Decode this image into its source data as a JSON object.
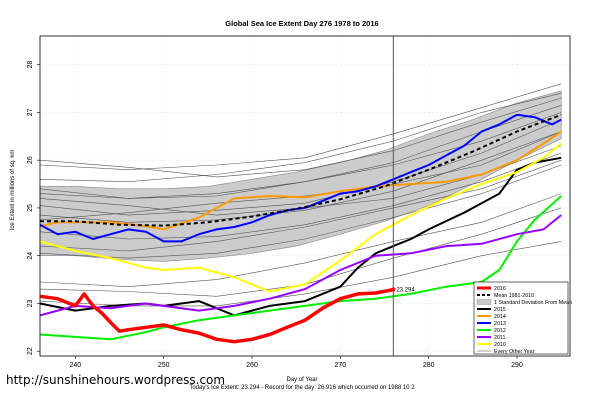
{
  "chart_data": {
    "type": "line",
    "title": "Global Sea Ice Extent Day 276 1978 to 2016",
    "xlabel": "Day of Year",
    "ylabel": "Ice Extent in millions of sq. km",
    "xlim": [
      236,
      296
    ],
    "ylim": [
      21.9,
      28.6
    ],
    "x_ticks": [
      240,
      250,
      260,
      270,
      280,
      290
    ],
    "y_ticks": [
      22,
      23,
      24,
      25,
      26,
      27,
      28
    ],
    "grid": true,
    "current_day": 276,
    "current_value": 23.294,
    "current_value_label": "23.294",
    "footer": "Today's Ice Extent: 23.294  -  Record for the day: 26.916 which occurred on 1988 10 2",
    "watermark": "http://sunshinehours.wordpress.com",
    "legend_position": "bottom-right",
    "legend": [
      {
        "label": "2016",
        "color": "#ff0000",
        "style": "thick"
      },
      {
        "label": "Mean 1981-2010",
        "color": "#000000",
        "style": "dashed"
      },
      {
        "label": "1 Standard Deviation From Mean",
        "color": "#c8c8c8",
        "style": "band"
      },
      {
        "label": "2015",
        "color": "#000000",
        "style": "solid"
      },
      {
        "label": "2014",
        "color": "#ff9900",
        "style": "solid"
      },
      {
        "label": "2013",
        "color": "#0000ff",
        "style": "solid"
      },
      {
        "label": "2012",
        "color": "#00ee00",
        "style": "solid"
      },
      {
        "label": "2011",
        "color": "#9900ff",
        "style": "solid"
      },
      {
        "label": "2010",
        "color": "#ffff00",
        "style": "solid"
      },
      {
        "label": "Every Other Year",
        "color": "#888888",
        "style": "thin"
      }
    ],
    "mean": {
      "x": [
        236,
        240,
        245,
        250,
        255,
        260,
        265,
        270,
        275,
        280,
        285,
        290,
        295
      ],
      "y": [
        24.72,
        24.72,
        24.65,
        24.63,
        24.7,
        24.82,
        24.98,
        25.18,
        25.45,
        25.8,
        26.18,
        26.6,
        26.95
      ]
    },
    "std_band": {
      "x": [
        236,
        240,
        245,
        250,
        255,
        260,
        265,
        270,
        275,
        280,
        285,
        290,
        295
      ],
      "upper": [
        25.45,
        25.45,
        25.4,
        25.4,
        25.45,
        25.6,
        25.75,
        25.95,
        26.2,
        26.55,
        26.85,
        27.2,
        27.45
      ],
      "lower": [
        24.0,
        24.0,
        23.92,
        23.88,
        23.95,
        24.05,
        24.2,
        24.45,
        24.72,
        25.05,
        25.5,
        26.0,
        26.45
      ]
    },
    "series": [
      {
        "name": "2016",
        "color": "#ff0000",
        "width": 3.5,
        "x": [
          236,
          238,
          240,
          241,
          242,
          243,
          244,
          245,
          246,
          248,
          250,
          252,
          254,
          256,
          258,
          260,
          262,
          264,
          266,
          268,
          270,
          272,
          274,
          276
        ],
        "y": [
          23.15,
          23.1,
          22.95,
          23.2,
          22.95,
          22.8,
          22.6,
          22.42,
          22.45,
          22.5,
          22.55,
          22.45,
          22.38,
          22.25,
          22.2,
          22.25,
          22.35,
          22.5,
          22.65,
          22.9,
          23.1,
          23.2,
          23.22,
          23.29
        ]
      },
      {
        "name": "2015",
        "color": "#000000",
        "width": 2,
        "x": [
          236,
          240,
          244,
          248,
          250,
          254,
          258,
          260,
          262,
          266,
          270,
          272,
          274,
          276,
          278,
          280,
          284,
          288,
          290,
          292,
          295
        ],
        "y": [
          23.0,
          22.85,
          22.95,
          23.0,
          22.95,
          23.05,
          22.75,
          22.85,
          22.95,
          23.05,
          23.35,
          23.75,
          24.05,
          24.2,
          24.35,
          24.55,
          24.9,
          25.3,
          25.8,
          25.95,
          26.05
        ]
      },
      {
        "name": "2014",
        "color": "#ff9900",
        "width": 2,
        "x": [
          236,
          238,
          240,
          244,
          248,
          250,
          254,
          258,
          262,
          266,
          270,
          274,
          278,
          282,
          286,
          290,
          293,
          295
        ],
        "y": [
          24.62,
          24.7,
          24.7,
          24.7,
          24.62,
          24.55,
          24.8,
          25.2,
          25.25,
          25.22,
          25.35,
          25.45,
          25.5,
          25.55,
          25.7,
          26.0,
          26.35,
          26.6
        ]
      },
      {
        "name": "2013",
        "color": "#0000ff",
        "width": 2,
        "x": [
          236,
          238,
          240,
          242,
          244,
          246,
          248,
          250,
          252,
          254,
          256,
          258,
          260,
          262,
          264,
          266,
          268,
          270,
          272,
          274,
          276,
          278,
          280,
          282,
          284,
          286,
          288,
          290,
          292,
          294,
          295
        ],
        "y": [
          24.65,
          24.45,
          24.5,
          24.35,
          24.45,
          24.55,
          24.5,
          24.3,
          24.3,
          24.45,
          24.55,
          24.6,
          24.7,
          24.85,
          24.95,
          25.0,
          25.15,
          25.3,
          25.35,
          25.45,
          25.6,
          25.75,
          25.9,
          26.1,
          26.3,
          26.6,
          26.75,
          26.95,
          26.9,
          26.75,
          26.85
        ]
      },
      {
        "name": "2012",
        "color": "#00ee00",
        "width": 2,
        "x": [
          236,
          240,
          244,
          248,
          250,
          254,
          258,
          262,
          266,
          270,
          274,
          278,
          282,
          286,
          288,
          290,
          292,
          295
        ],
        "y": [
          22.35,
          22.3,
          22.25,
          22.4,
          22.5,
          22.65,
          22.75,
          22.85,
          22.95,
          23.05,
          23.1,
          23.2,
          23.35,
          23.45,
          23.7,
          24.3,
          24.75,
          25.25
        ]
      },
      {
        "name": "2011",
        "color": "#9900ff",
        "width": 2,
        "x": [
          236,
          240,
          244,
          248,
          250,
          254,
          258,
          262,
          266,
          270,
          274,
          278,
          282,
          286,
          290,
          293,
          295
        ],
        "y": [
          22.75,
          22.95,
          22.9,
          23.0,
          22.95,
          22.85,
          22.95,
          23.1,
          23.3,
          23.7,
          24.0,
          24.05,
          24.2,
          24.25,
          24.45,
          24.55,
          24.85
        ]
      },
      {
        "name": "2010",
        "color": "#ffff00",
        "width": 2,
        "x": [
          236,
          240,
          244,
          248,
          250,
          254,
          258,
          262,
          266,
          270,
          274,
          278,
          282,
          286,
          290,
          293,
          295
        ],
        "y": [
          24.3,
          24.1,
          23.95,
          23.75,
          23.7,
          23.75,
          23.55,
          23.25,
          23.4,
          23.9,
          24.45,
          24.85,
          25.2,
          25.5,
          25.75,
          26.05,
          26.35
        ]
      }
    ],
    "other_years": [
      {
        "name": "other",
        "x": [
          236,
          246,
          256,
          266,
          276,
          286,
          295
        ],
        "y": [
          25.3,
          25.2,
          25.3,
          25.55,
          25.9,
          26.4,
          27.0
        ]
      },
      {
        "name": "other",
        "x": [
          236,
          246,
          256,
          266,
          276,
          286,
          295
        ],
        "y": [
          25.6,
          25.55,
          25.7,
          25.95,
          26.4,
          27.0,
          27.4
        ]
      },
      {
        "name": "other",
        "x": [
          236,
          246,
          256,
          266,
          276,
          286,
          295
        ],
        "y": [
          25.9,
          25.8,
          25.9,
          26.05,
          26.55,
          27.1,
          27.6
        ]
      },
      {
        "name": "other",
        "x": [
          236,
          246,
          256,
          266,
          276,
          286,
          295
        ],
        "y": [
          25.05,
          24.85,
          24.95,
          25.1,
          25.55,
          26.15,
          26.85
        ]
      },
      {
        "name": "other",
        "x": [
          236,
          246,
          256,
          266,
          276,
          286,
          295
        ],
        "y": [
          24.85,
          24.7,
          24.75,
          24.95,
          25.35,
          26.0,
          26.6
        ]
      },
      {
        "name": "other",
        "x": [
          236,
          246,
          256,
          266,
          276,
          286,
          295
        ],
        "y": [
          24.5,
          24.35,
          24.4,
          24.65,
          25.05,
          25.55,
          26.15
        ]
      },
      {
        "name": "other",
        "x": [
          236,
          246,
          256,
          266,
          276,
          286,
          295
        ],
        "y": [
          24.2,
          24.1,
          24.3,
          24.6,
          25.0,
          25.4,
          26.0
        ]
      },
      {
        "name": "other",
        "x": [
          236,
          246,
          256,
          266,
          276,
          286,
          295
        ],
        "y": [
          24.05,
          23.95,
          24.05,
          24.35,
          24.8,
          25.3,
          25.9
        ]
      },
      {
        "name": "other",
        "x": [
          236,
          246,
          256,
          266,
          276,
          286,
          295
        ],
        "y": [
          23.45,
          23.35,
          23.5,
          23.85,
          24.3,
          24.7,
          25.3
        ]
      },
      {
        "name": "other",
        "x": [
          236,
          246,
          256,
          266,
          276,
          286,
          295
        ],
        "y": [
          23.3,
          23.25,
          23.15,
          23.4,
          23.95,
          24.45,
          25.0
        ]
      },
      {
        "name": "other",
        "x": [
          236,
          246,
          256,
          266,
          276,
          286,
          295
        ],
        "y": [
          25.2,
          25.05,
          24.85,
          25.0,
          25.2,
          25.7,
          26.3
        ]
      },
      {
        "name": "other",
        "x": [
          236,
          246,
          256,
          266,
          276,
          286,
          295
        ],
        "y": [
          26.0,
          25.85,
          25.65,
          25.8,
          26.2,
          26.8,
          27.3
        ]
      },
      {
        "name": "other",
        "x": [
          236,
          246,
          256,
          266,
          276,
          286,
          295
        ],
        "y": [
          24.75,
          24.9,
          25.1,
          25.25,
          25.5,
          25.9,
          26.6
        ]
      },
      {
        "name": "other",
        "x": [
          236,
          246,
          256,
          266,
          276,
          286,
          295
        ],
        "y": [
          23.05,
          22.95,
          22.95,
          23.2,
          23.55,
          24.0,
          24.3
        ]
      },
      {
        "name": "other",
        "x": [
          236,
          246,
          256,
          266,
          276,
          286,
          295
        ],
        "y": [
          25.4,
          25.2,
          25.25,
          25.55,
          25.95,
          26.6,
          27.15
        ]
      }
    ]
  }
}
